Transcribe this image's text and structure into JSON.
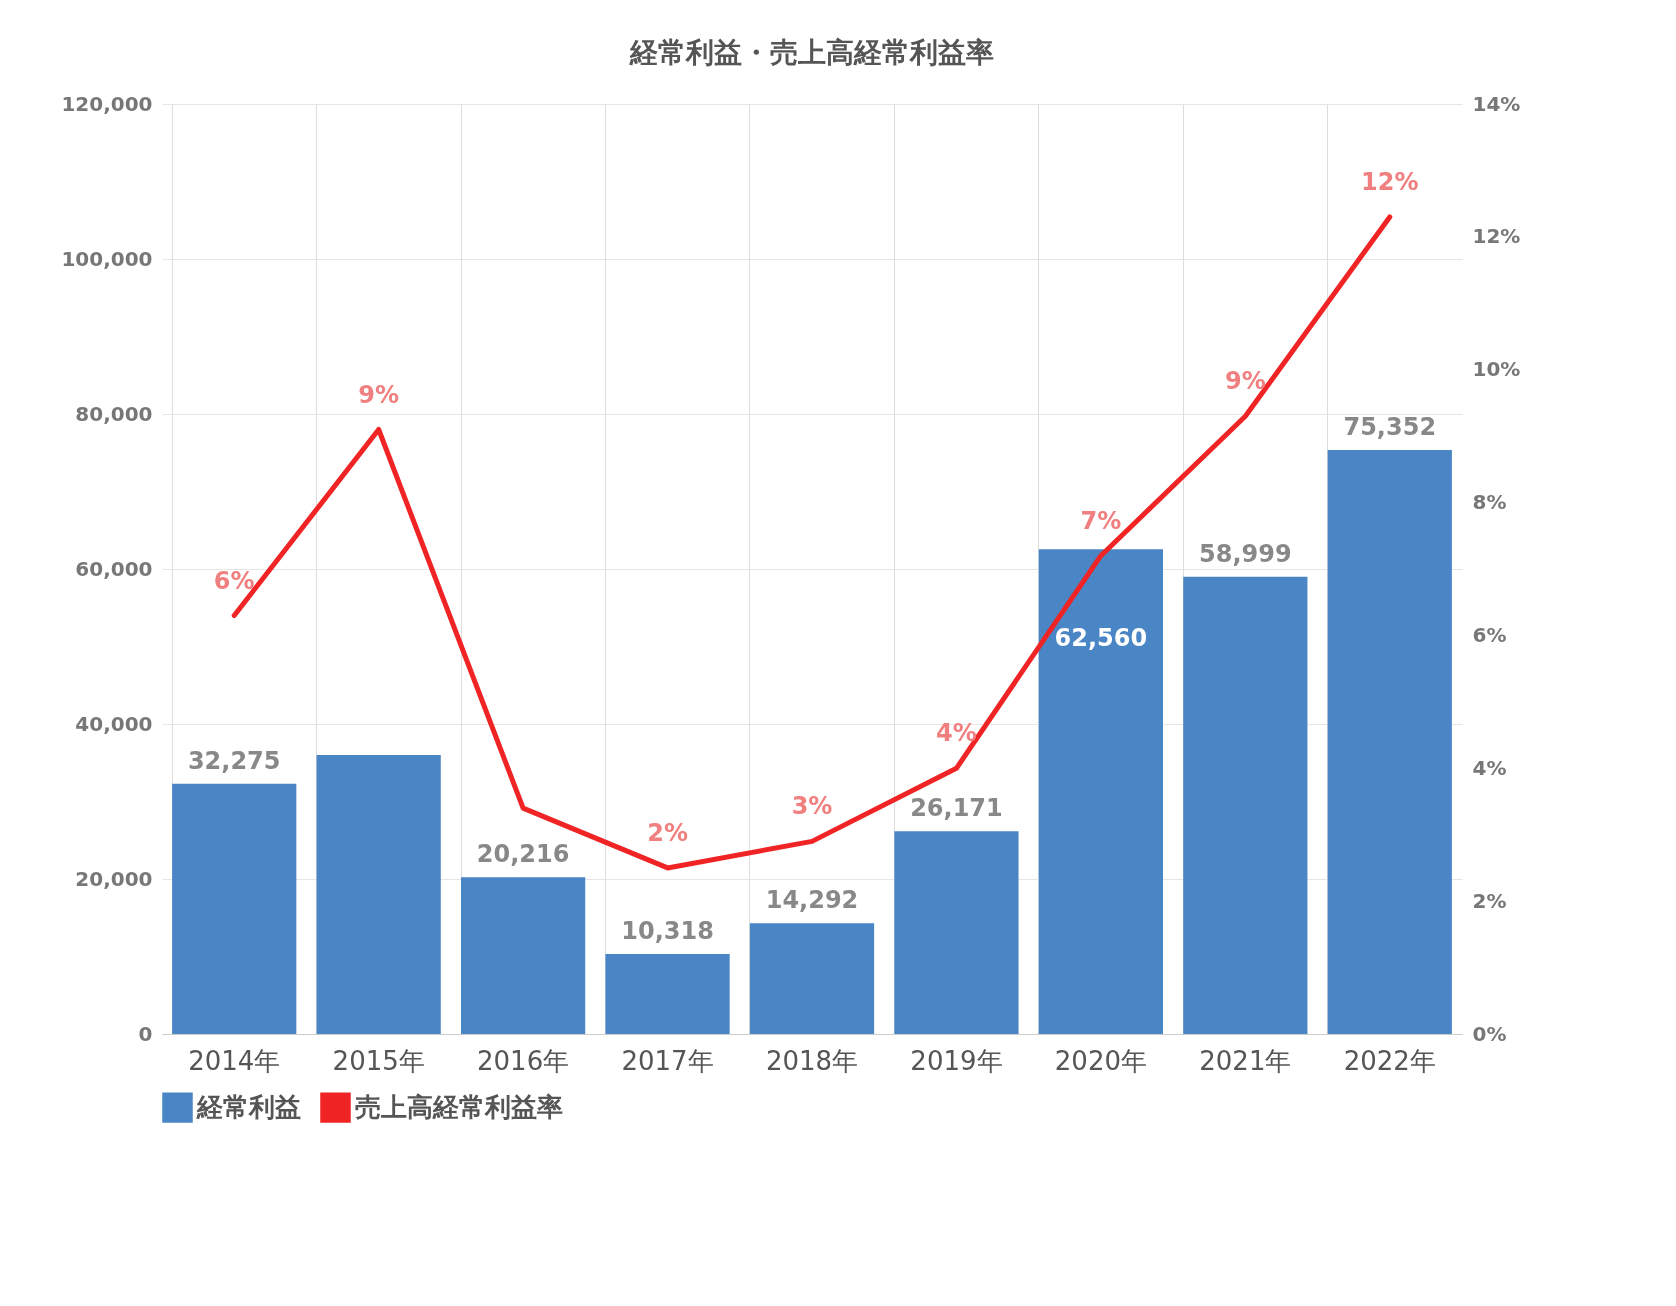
{
  "chart_data": {
    "type": "bar",
    "title": "経常利益・売上高経常利益率",
    "categories": [
      "2014年",
      "2015年",
      "2016年",
      "2017年",
      "2018年",
      "2019年",
      "2020年",
      "2021年",
      "2022年"
    ],
    "series": [
      {
        "name": "経常利益",
        "color": "#4a86c5",
        "values": [
          32275,
          36000,
          20216,
          10318,
          14292,
          26171,
          62560,
          58999,
          75352
        ],
        "value_labels": [
          "32,275",
          null,
          "20,216",
          "10,318",
          "14,292",
          "26,171",
          "62,560",
          "58,999",
          "75,352"
        ]
      },
      {
        "name": "売上高経常利益率",
        "type": "line",
        "axis": "y2",
        "color": "#f02424",
        "values": [
          6.3,
          9.1,
          3.4,
          2.5,
          2.9,
          4.0,
          7.2,
          9.3,
          12.3
        ],
        "value_labels": [
          "6%",
          "9%",
          null,
          "2%",
          "3%",
          "4%",
          "7%",
          "9%",
          "12%"
        ]
      }
    ],
    "ylim": [
      0,
      120000
    ],
    "yticks": [
      {
        "value": 0,
        "label": "0"
      },
      {
        "value": 20000,
        "label": "20,000"
      },
      {
        "value": 40000,
        "label": "40,000"
      },
      {
        "value": 60000,
        "label": "60,000"
      },
      {
        "value": 80000,
        "label": "80,000"
      },
      {
        "value": 100000,
        "label": "100,000"
      },
      {
        "value": 120000,
        "label": "120,000"
      }
    ],
    "y2lim": [
      0,
      14
    ],
    "y2ticks": [
      {
        "value": 0,
        "label": "0%"
      },
      {
        "value": 2,
        "label": "2%"
      },
      {
        "value": 4,
        "label": "4%"
      },
      {
        "value": 6,
        "label": "6%"
      },
      {
        "value": 8,
        "label": "8%"
      },
      {
        "value": 10,
        "label": "10%"
      },
      {
        "value": 12,
        "label": "12%"
      },
      {
        "value": 14,
        "label": "14%"
      }
    ],
    "grid": true,
    "legend": "bottom"
  }
}
